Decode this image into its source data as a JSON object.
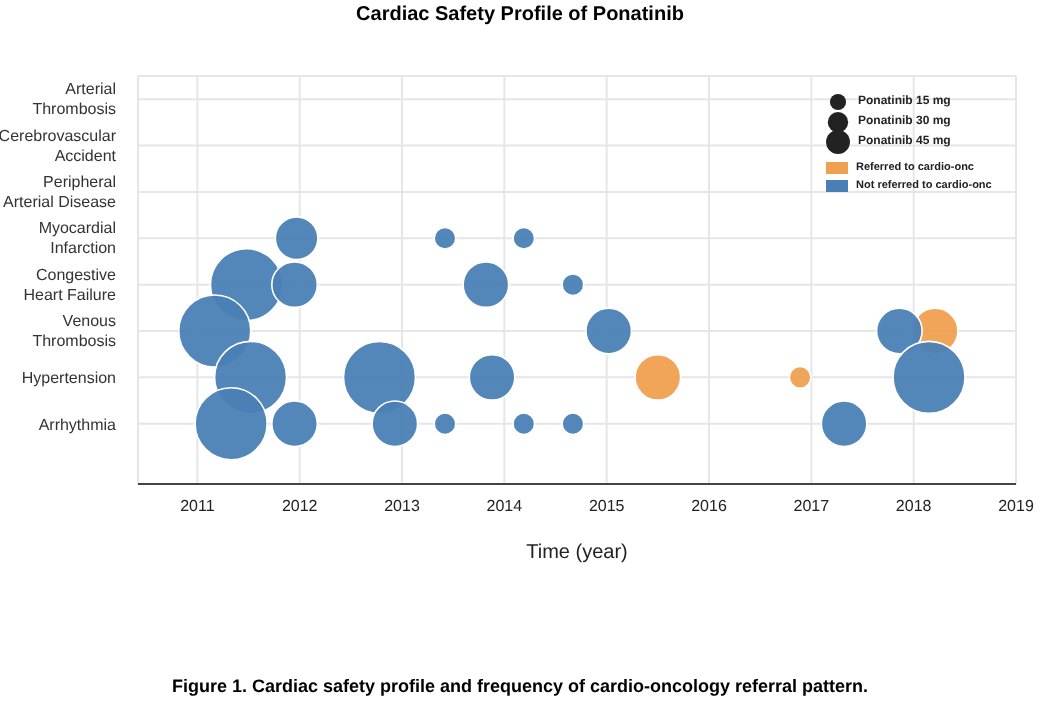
{
  "chart_data": {
    "type": "bubble",
    "title": "Cardiac Safety Profile of Ponatinib",
    "xlabel": "Time (year)",
    "orientation": "horizontal",
    "categories": [
      "Arterial Thrombosis",
      "Cerebrovascular Accident",
      "Peripheral Arterial Disease",
      "Myocardial Infarction",
      "Congestive Heart Failure",
      "Venous Thrombosis",
      "Hypertension",
      "Arrhythmia"
    ],
    "series": [
      {
        "name": "Referred to cardio-onc",
        "color": "#f0a050",
        "x": [
          "Venous Thrombosis",
          "Hypertension",
          "Hypertension"
        ],
        "values": [
          2018.21,
          2015.5,
          2016.89
        ],
        "sizes": [
          0.4,
          0.4,
          0.09
        ]
      },
      {
        "name": "Not referred to cardio-onc",
        "color": "#4a7fb5",
        "x": [
          "Myocardial Infarction",
          "Myocardial Infarction",
          "Myocardial Infarction",
          "Congestive Heart Failure",
          "Congestive Heart Failure",
          "Congestive Heart Failure",
          "Congestive Heart Failure",
          "Venous Thrombosis",
          "Venous Thrombosis",
          "Venous Thrombosis",
          "Hypertension",
          "Hypertension",
          "Hypertension",
          "Hypertension",
          "Arrhythmia",
          "Arrhythmia",
          "Arrhythmia",
          "Arrhythmia",
          "Arrhythmia",
          "Arrhythmia",
          "Arrhythmia"
        ],
        "values": [
          2011.97,
          2013.42,
          2014.19,
          2011.48,
          2011.95,
          2013.82,
          2014.67,
          2011.17,
          2015.02,
          2017.86,
          2011.52,
          2012.78,
          2013.88,
          2018.15,
          2011.33,
          2011.95,
          2012.93,
          2013.42,
          2014.19,
          2014.67,
          2017.32
        ],
        "sizes": [
          0.35,
          0.09,
          0.09,
          1,
          0.4,
          0.4,
          0.09,
          1,
          0.4,
          0.4,
          1,
          1,
          0.4,
          1,
          1,
          0.4,
          0.4,
          0.09,
          0.09,
          0.09,
          0.4
        ]
      }
    ],
    "size_legend": [
      {
        "value": 0.05,
        "label": "Ponatinib 15 mg"
      },
      {
        "value": 0.08,
        "label": "Ponatinib 30 mg"
      },
      {
        "value": 0.11,
        "label": "Ponatinib 45 mg"
      }
    ],
    "xlim": [
      2010.42,
      2019
    ],
    "xticks": [
      2011,
      2012,
      2013,
      2014,
      2015,
      2016,
      2017,
      2018,
      2019
    ],
    "grid": true,
    "legend": "top right",
    "annotations": [
      "Figure 1. Cardiac safety profile and frequency of cardio-oncology referral pattern."
    ]
  }
}
